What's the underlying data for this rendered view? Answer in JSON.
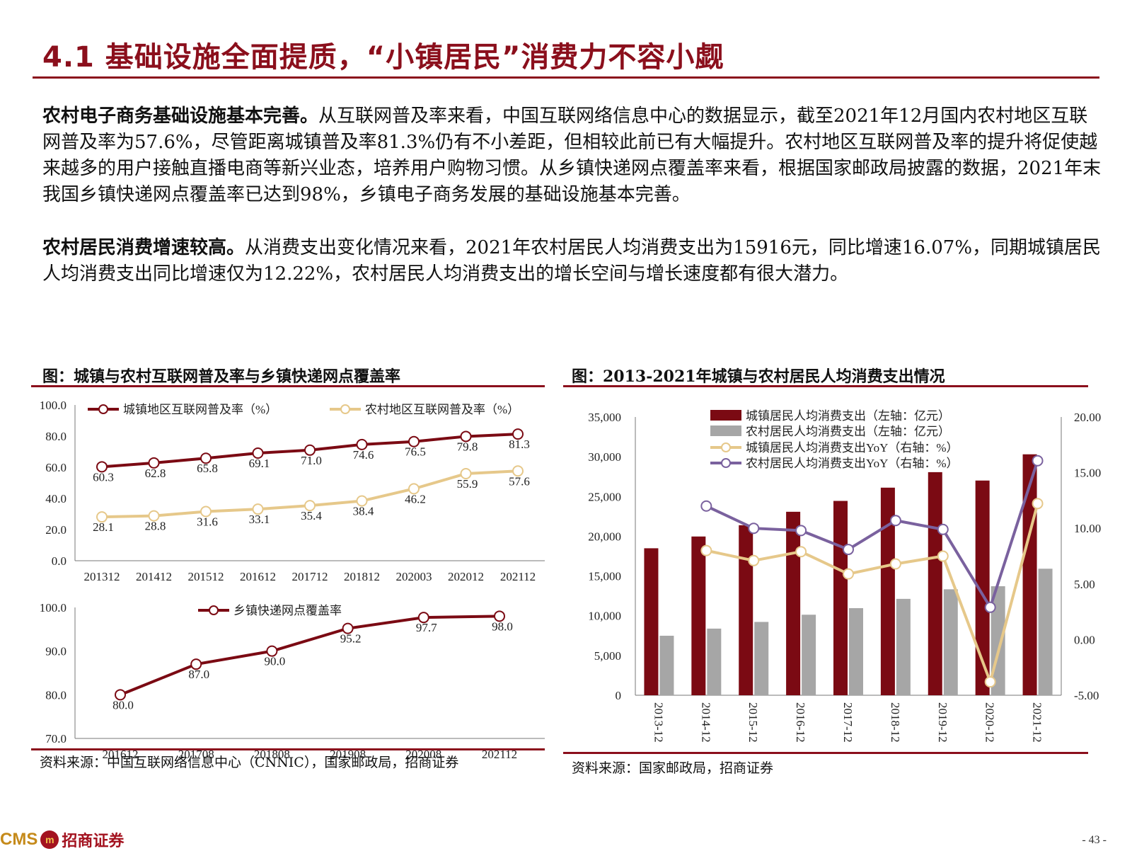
{
  "header": {
    "title": "4.1 基础设施全面提质，“小镇居民”消费力不容小觑"
  },
  "body": {
    "p1_bold": "农村电子商务基础设施基本完善。",
    "p1_text": "从互联网普及率来看，中国互联网络信息中心的数据显示，截至2021年12月国内农村地区互联网普及率为57.6%，尽管距离城镇普及率81.3%仍有不小差距，但相较此前已有大幅提升。农村地区互联网普及率的提升将促使越来越多的用户接触直播电商等新兴业态，培养用户购物习惯。从乡镇快递网点覆盖率来看，根据国家邮政局披露的数据，2021年末我国乡镇快递网点覆盖率已达到98%，乡镇电子商务发展的基础设施基本完善。",
    "p2_bold": "农村居民消费增速较高。",
    "p2_text": "从消费支出变化情况来看，2021年农村居民人均消费支出为15916元，同比增速16.07%，同期城镇居民人均消费支出同比增速仅为12.22%，农村居民人均消费支出的增长空间与增长速度都有很大潜力。"
  },
  "left_figure": {
    "title": "图：城镇与农村互联网普及率与乡镇快递网点覆盖率",
    "source": "资料来源：中国互联网络信息中心（CNNIC），国家邮政局，招商证券"
  },
  "right_figure": {
    "title": "图：2013-2021年城镇与农村居民人均消费支出情况",
    "source": "资料来源：国家邮政局，招商证券"
  },
  "footer": {
    "logo_cms": "CMS",
    "logo_mark": "m",
    "logo_cn": "招商证券",
    "page": "- 43 -"
  },
  "colors": {
    "dark_red": "#7b0a13",
    "gold": "#e6c88a",
    "gray": "#a6a6a6",
    "purple": "#7a619e",
    "accent": "#8b0f1c"
  },
  "chart_data": [
    {
      "type": "line",
      "categories": [
        "201312",
        "201412",
        "201512",
        "201612",
        "201712",
        "201812",
        "202003",
        "202012",
        "202112"
      ],
      "series": [
        {
          "name": "城镇地区互联网普及率（%）",
          "values": [
            60.3,
            62.8,
            65.8,
            69.1,
            71.0,
            74.6,
            76.5,
            79.8,
            81.3
          ]
        },
        {
          "name": "农村地区互联网普及率（%）",
          "values": [
            28.1,
            28.8,
            31.6,
            33.1,
            35.4,
            38.4,
            46.2,
            55.9,
            57.6
          ]
        }
      ],
      "ylim": [
        0,
        100
      ],
      "yticks": [
        "100.0",
        "80.0",
        "60.0",
        "40.0",
        "20.0",
        "0.0"
      ],
      "labels": [
        [
          "60.3",
          "62.8",
          "65.8",
          "69.1",
          "71.0",
          "74.6",
          "76.5",
          "79.8",
          "81.3"
        ],
        [
          "28.1",
          "28.8",
          "31.6",
          "33.1",
          "35.4",
          "38.4",
          "46.2",
          "55.9",
          "57.6"
        ]
      ],
      "legend": "top"
    },
    {
      "type": "line",
      "categories": [
        "201612",
        "201708",
        "201808",
        "201908",
        "202008",
        "202112"
      ],
      "series": [
        {
          "name": "乡镇快递网点覆盖率",
          "values": [
            80.0,
            87.0,
            90.0,
            95.2,
            97.7,
            98.0
          ]
        }
      ],
      "ylim": [
        70,
        100
      ],
      "yticks": [
        "100.0",
        "90.0",
        "80.0",
        "70.0"
      ],
      "labels": [
        [
          "80.0",
          "87.0",
          "90.0",
          "95.2",
          "97.7",
          "98.0"
        ]
      ],
      "legend": "top"
    },
    {
      "type": "bar",
      "categories": [
        "2013-12",
        "2014-12",
        "2015-12",
        "2016-12",
        "2017-12",
        "2018-12",
        "2019-12",
        "2020-12",
        "2021-12"
      ],
      "series": [
        {
          "name": "城镇居民人均消费支出（左轴：亿元）",
          "type": "bar",
          "axis": "left",
          "values": [
            18488,
            19968,
            21392,
            23079,
            24445,
            26112,
            28063,
            27007,
            30307
          ]
        },
        {
          "name": "农村居民人均消费支出（左轴：亿元）",
          "type": "bar",
          "axis": "left",
          "values": [
            7485,
            8383,
            9223,
            10130,
            10955,
            12124,
            13328,
            13713,
            15916
          ]
        },
        {
          "name": "城镇居民人均消费支出YoY（右轴：%）",
          "type": "line",
          "axis": "right",
          "values": [
            null,
            8.0,
            7.1,
            7.9,
            5.9,
            6.8,
            7.5,
            -3.8,
            12.22
          ]
        },
        {
          "name": "农村居民人均消费支出YoY（右轴：%）",
          "type": "line",
          "axis": "right",
          "values": [
            null,
            12.0,
            10.0,
            9.8,
            8.1,
            10.7,
            9.9,
            2.9,
            16.07
          ]
        }
      ],
      "ylim_left": [
        0,
        35000
      ],
      "ylim_right": [
        -5,
        20
      ],
      "yticks_left": [
        "35,000",
        "30,000",
        "25,000",
        "20,000",
        "15,000",
        "10,000",
        "5,000",
        "0"
      ],
      "yticks_right": [
        "20.00",
        "15.00",
        "10.00",
        "5.00",
        "0.00",
        "-5.00"
      ],
      "legend": "top"
    }
  ]
}
